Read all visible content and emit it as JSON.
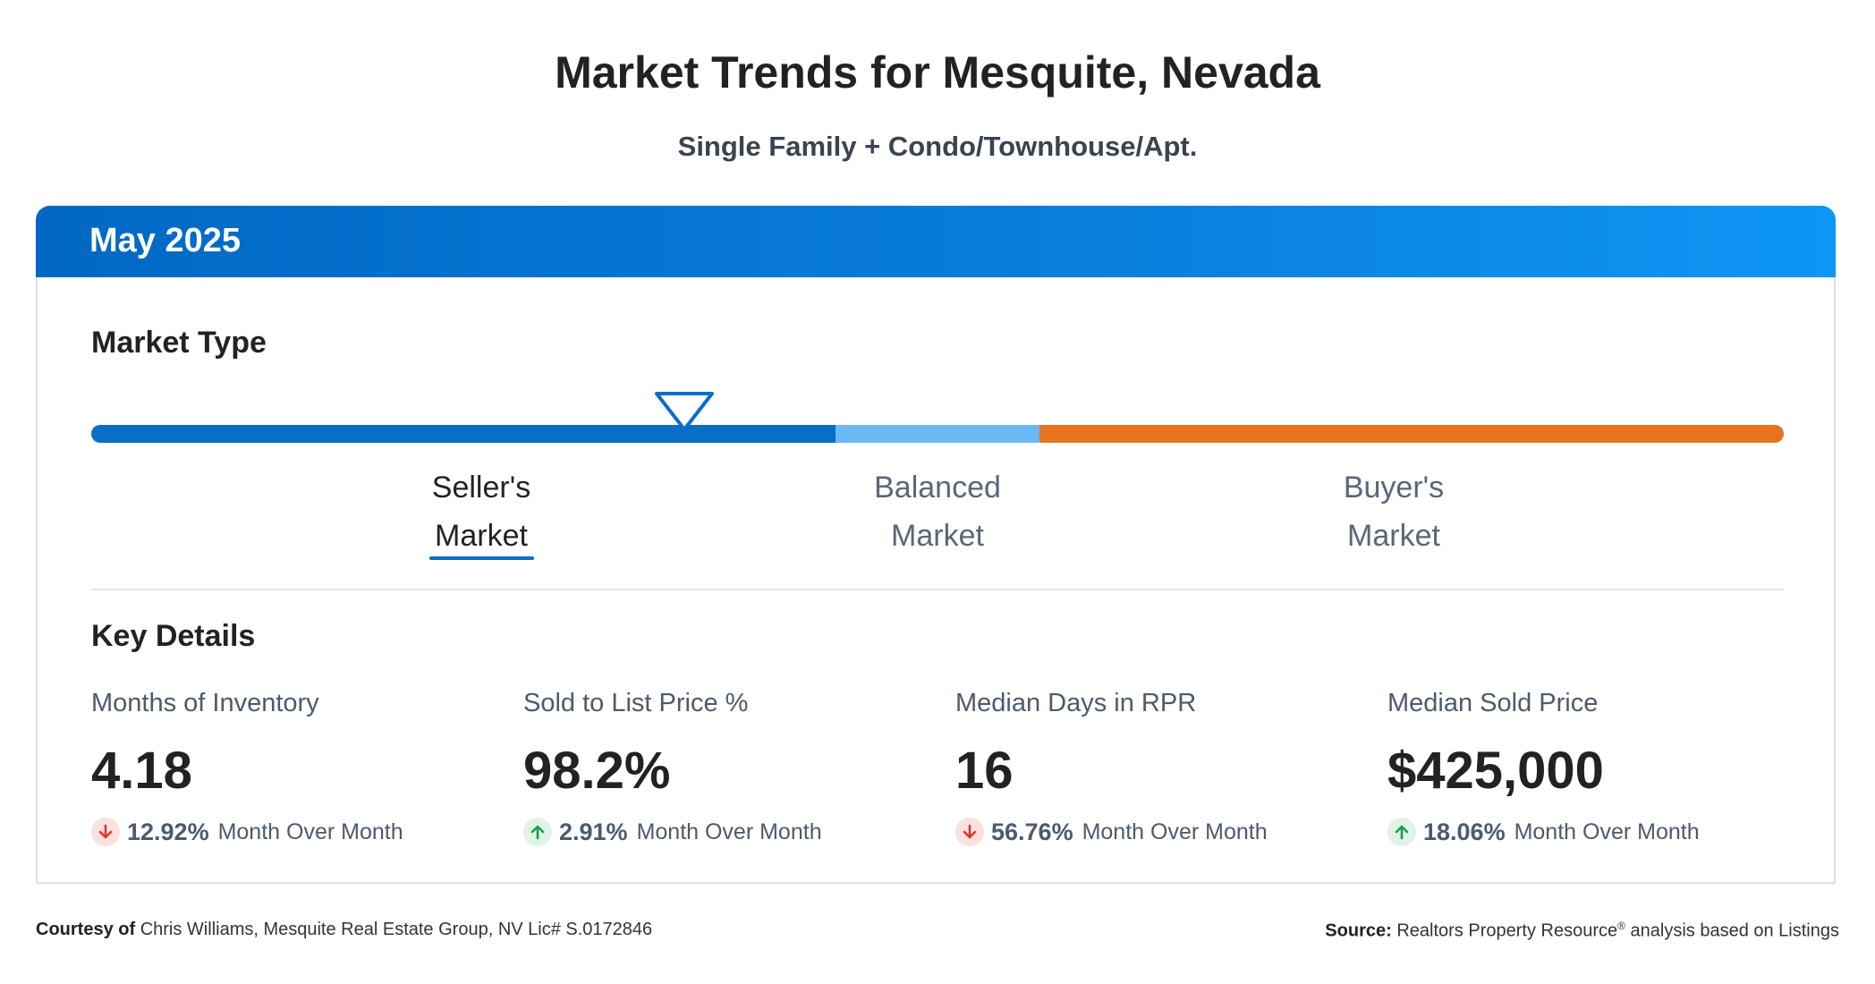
{
  "header": {
    "title": "Market Trends for Mesquite, Nevada",
    "subtitle": "Single Family + Condo/Townhouse/Apt."
  },
  "card": {
    "period": "May 2025",
    "market_type": {
      "section_title": "Market Type",
      "segments": [
        {
          "label_line1": "Seller's",
          "label_line2": "Market",
          "color": "#0a6ec6",
          "active": true
        },
        {
          "label_line1": "Balanced",
          "label_line2": "Market",
          "color": "#6bb9f4",
          "active": false
        },
        {
          "label_line1": "Buyer's",
          "label_line2": "Market",
          "color": "#e8731f",
          "active": false
        }
      ],
      "marker_icon": "triangle-down-icon"
    },
    "key_details": {
      "section_title": "Key Details",
      "metrics": [
        {
          "label": "Months of Inventory",
          "value": "4.18",
          "change": "12.92%",
          "direction": "down",
          "change_text": "Month Over Month"
        },
        {
          "label": "Sold to List Price %",
          "value": "98.2%",
          "change": "2.91%",
          "direction": "up",
          "change_text": "Month Over Month"
        },
        {
          "label": "Median Days in RPR",
          "value": "16",
          "change": "56.76%",
          "direction": "down",
          "change_text": "Month Over Month"
        },
        {
          "label": "Median Sold Price",
          "value": "$425,000",
          "change": "18.06%",
          "direction": "up",
          "change_text": "Month Over Month"
        }
      ]
    }
  },
  "footer": {
    "courtesy_label": "Courtesy of",
    "courtesy_text": "Chris Williams, Mesquite Real Estate Group, NV Lic# S.0172846",
    "source_label": "Source:",
    "source_text_a": "Realtors Property Resource",
    "source_sup": "®",
    "source_text_b": "analysis based on Listings"
  },
  "colors": {
    "header_gradient_start": "#0068c4",
    "header_gradient_end": "#0e96f5",
    "down": "#d9382e",
    "up": "#1b9e4b"
  }
}
